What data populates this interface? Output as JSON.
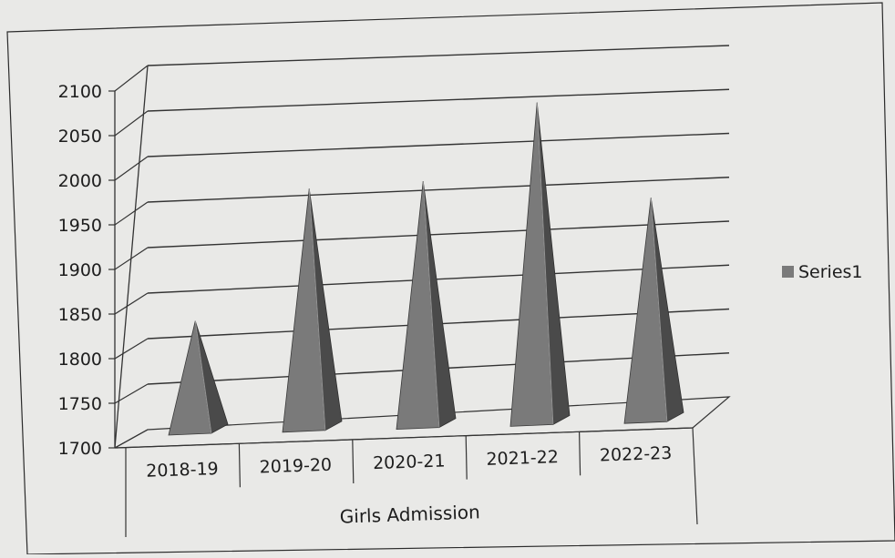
{
  "chart_data": {
    "type": "bar",
    "style": "3d-pyramid",
    "categories": [
      "2018-19",
      "2019-20",
      "2020-21",
      "2021-22",
      "2022-23"
    ],
    "series": [
      {
        "name": "Series1",
        "values": [
          1830,
          1975,
          1980,
          2065,
          1955
        ]
      }
    ],
    "xlabel": "Girls Admission",
    "ylabel": "",
    "ylim": [
      1700,
      2100
    ],
    "yticks": [
      "1700",
      "1750",
      "1800",
      "1850",
      "1900",
      "1950",
      "2000",
      "2050",
      "2100"
    ],
    "grid": true,
    "legend": "right",
    "colors": {
      "bar": "#7a7a7a",
      "bar_shade": "#4a4a4a",
      "bar_light": "#959595"
    }
  }
}
